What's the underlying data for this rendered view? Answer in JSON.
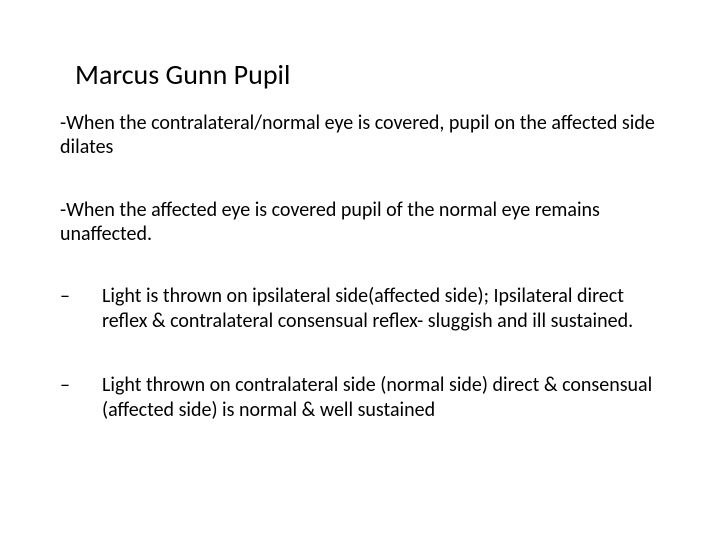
{
  "title": "Marcus Gunn Pupil",
  "para1": "-When the contralateral/normal eye is covered, pupil on the affected side dilates",
  "para2": "-When the affected eye is covered pupil of the normal eye remains unaffected.",
  "bullets": [
    {
      "dash": "–",
      "text": "Light is thrown on ipsilateral side(affected side); Ipsilateral direct reflex & contralateral consensual reflex- sluggish and ill sustained."
    },
    {
      "dash": "–",
      "text": "Light thrown on contralateral side (normal side) direct & consensual (affected side) is normal & well sustained"
    }
  ],
  "colors": {
    "bg": "#ffffff",
    "text": "#000000"
  },
  "fontsize": {
    "title": 28,
    "body": 20
  }
}
